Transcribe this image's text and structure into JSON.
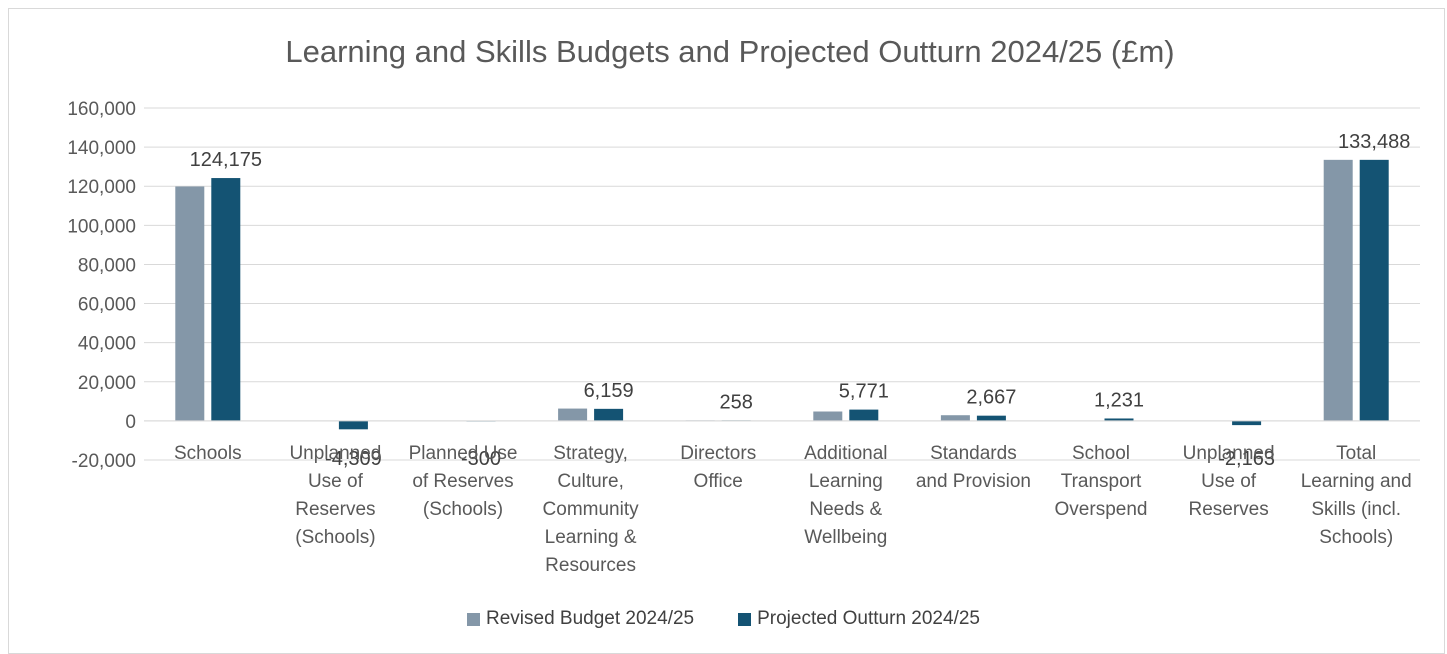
{
  "chart_data": {
    "type": "bar",
    "title": "Learning and Skills Budgets and Projected Outturn 2024/25 (£m)",
    "xlabel": "",
    "ylabel": "",
    "ylim": [
      -20000,
      160000
    ],
    "yticks": [
      160000,
      140000,
      120000,
      100000,
      80000,
      60000,
      40000,
      20000,
      0,
      -20000
    ],
    "ytick_labels": [
      "160,000",
      "140,000",
      "120,000",
      "100,000",
      "80,000",
      "60,000",
      "40,000",
      "20,000",
      "0",
      "-20,000"
    ],
    "grid": true,
    "legend_position": "bottom",
    "categories": [
      [
        "Schools"
      ],
      [
        "Unplanned",
        "Use of",
        "Reserves",
        "(Schools)"
      ],
      [
        "Planned Use",
        "of Reserves",
        "(Schools)"
      ],
      [
        "Strategy,",
        "Culture,",
        "Community",
        "Learning &",
        "Resources"
      ],
      [
        "Directors",
        "Office"
      ],
      [
        "Additional",
        "Learning",
        "Needs &",
        "Wellbeing"
      ],
      [
        "Standards",
        "and Provision"
      ],
      [
        "School",
        "Transport",
        "Overspend"
      ],
      [
        "Unplanned",
        "Use of",
        "Reserves"
      ],
      [
        "Total",
        "Learning and",
        "Skills (incl.",
        "Schools)"
      ]
    ],
    "series": [
      {
        "name": "Revised Budget 2024/25",
        "color": "#8497a8",
        "values": [
          119866,
          0,
          0,
          6300,
          258,
          4800,
          2900,
          0,
          0,
          133488
        ]
      },
      {
        "name": "Projected Outturn 2024/25",
        "color": "#145373",
        "values": [
          124175,
          -4309,
          -300,
          6159,
          258,
          5771,
          2667,
          1231,
          -2163,
          133488
        ],
        "data_labels": [
          "124,175",
          "-4,309",
          "-300",
          "6,159",
          "258",
          "5,771",
          "2,667",
          "1,231",
          "-2,163",
          "133,488"
        ]
      }
    ]
  }
}
